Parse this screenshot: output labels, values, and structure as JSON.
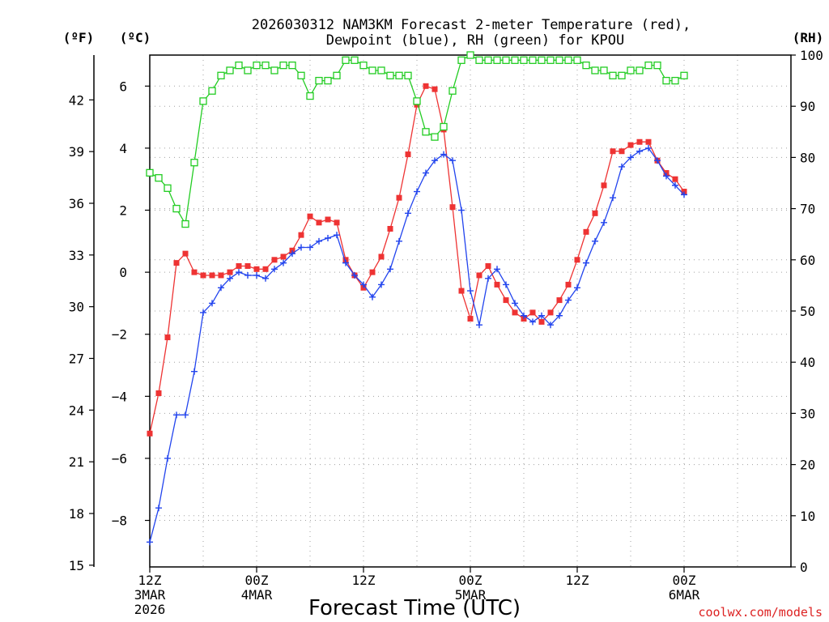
{
  "chart_data": {
    "type": "line",
    "title_line1": "2026030312 NAM3KM Forecast 2-meter Temperature (red),",
    "title_line2": "Dewpoint (blue), RH (green) for KPOU",
    "xlabel": "Forecast Time (UTC)",
    "credit": "coolwx.com/models",
    "left_unit_f": "(ºF)",
    "left_unit_c": "(ºC)",
    "right_unit": "(RH)",
    "x_range_hours": [
      0,
      72
    ],
    "x_ticks": [
      {
        "hour": 0,
        "line1": "12Z",
        "line2": "3MAR",
        "line3": "2026"
      },
      {
        "hour": 12,
        "line1": "00Z",
        "line2": "4MAR",
        "line3": ""
      },
      {
        "hour": 24,
        "line1": "12Z",
        "line2": "",
        "line3": ""
      },
      {
        "hour": 36,
        "line1": "00Z",
        "line2": "5MAR",
        "line3": ""
      },
      {
        "hour": 48,
        "line1": "12Z",
        "line2": "",
        "line3": ""
      },
      {
        "hour": 60,
        "line1": "00Z",
        "line2": "6MAR",
        "line3": ""
      }
    ],
    "celsius_range": [
      -9.5,
      7.0
    ],
    "celsius_ticks": [
      -8,
      -6,
      -4,
      -2,
      0,
      2,
      4,
      6
    ],
    "fahrenheit_ticks": [
      15,
      18,
      21,
      24,
      27,
      30,
      33,
      36,
      39,
      42
    ],
    "rh_range": [
      0,
      100
    ],
    "rh_ticks": [
      0,
      10,
      20,
      30,
      40,
      50,
      60,
      70,
      80,
      90,
      100
    ],
    "series": [
      {
        "name": "Temperature",
        "axis": "celsius",
        "color": "#ee3333",
        "marker": "filled-square",
        "x": [
          0,
          1,
          2,
          3,
          4,
          5,
          6,
          7,
          8,
          9,
          10,
          11,
          12,
          13,
          14,
          15,
          16,
          17,
          18,
          19,
          20,
          21,
          22,
          23,
          24,
          25,
          26,
          27,
          28,
          29,
          30,
          31,
          32,
          33,
          34,
          35,
          36,
          37,
          38,
          39,
          40,
          41,
          42,
          43,
          44,
          45,
          46,
          47,
          48,
          49,
          50,
          51,
          52,
          53,
          54,
          55,
          56,
          57,
          58,
          59,
          60
        ],
        "values": [
          -5.2,
          -3.9,
          -2.1,
          0.3,
          0.6,
          0.0,
          -0.1,
          -0.1,
          -0.1,
          0.0,
          0.2,
          0.2,
          0.1,
          0.1,
          0.4,
          0.5,
          0.7,
          1.2,
          1.8,
          1.6,
          1.7,
          1.6,
          0.4,
          -0.1,
          -0.5,
          0.0,
          0.5,
          1.4,
          2.4,
          3.8,
          5.4,
          6.0,
          5.9,
          4.6,
          2.1,
          -0.6,
          -1.5,
          -0.1,
          0.2,
          -0.4,
          -0.9,
          -1.3,
          -1.5,
          -1.3,
          -1.6,
          -1.3,
          -0.9,
          -0.4,
          0.4,
          1.3,
          1.9,
          2.8,
          3.9,
          3.9,
          4.1,
          4.2,
          4.2,
          3.6,
          3.2,
          3.0,
          2.6
        ]
      },
      {
        "name": "Dewpoint",
        "axis": "celsius",
        "color": "#2244ee",
        "marker": "plus",
        "x": [
          0,
          1,
          2,
          3,
          4,
          5,
          6,
          7,
          8,
          9,
          10,
          11,
          12,
          13,
          14,
          15,
          16,
          17,
          18,
          19,
          20,
          21,
          22,
          23,
          24,
          25,
          26,
          27,
          28,
          29,
          30,
          31,
          32,
          33,
          34,
          35,
          36,
          37,
          38,
          39,
          40,
          41,
          42,
          43,
          44,
          45,
          46,
          47,
          48,
          49,
          50,
          51,
          52,
          53,
          54,
          55,
          56,
          57,
          58,
          59,
          60
        ],
        "values": [
          -8.7,
          -7.6,
          -6.0,
          -4.6,
          -4.6,
          -3.2,
          -1.3,
          -1.0,
          -0.5,
          -0.2,
          0.0,
          -0.1,
          -0.1,
          -0.2,
          0.1,
          0.3,
          0.6,
          0.8,
          0.8,
          1.0,
          1.1,
          1.2,
          0.3,
          -0.1,
          -0.4,
          -0.8,
          -0.4,
          0.1,
          1.0,
          1.9,
          2.6,
          3.2,
          3.6,
          3.8,
          3.6,
          2.0,
          -0.6,
          -1.7,
          -0.2,
          0.1,
          -0.4,
          -1.0,
          -1.4,
          -1.6,
          -1.4,
          -1.7,
          -1.4,
          -0.9,
          -0.5,
          0.3,
          1.0,
          1.6,
          2.4,
          3.4,
          3.7,
          3.9,
          4.0,
          3.6,
          3.1,
          2.8,
          2.5
        ]
      },
      {
        "name": "Relative Humidity",
        "axis": "rh",
        "color": "#22cc22",
        "marker": "open-square",
        "x": [
          0,
          1,
          2,
          3,
          4,
          5,
          6,
          7,
          8,
          9,
          10,
          11,
          12,
          13,
          14,
          15,
          16,
          17,
          18,
          19,
          20,
          21,
          22,
          23,
          24,
          25,
          26,
          27,
          28,
          29,
          30,
          31,
          32,
          33,
          34,
          35,
          36,
          37,
          38,
          39,
          40,
          41,
          42,
          43,
          44,
          45,
          46,
          47,
          48,
          49,
          50,
          51,
          52,
          53,
          54,
          55,
          56,
          57,
          58,
          59,
          60
        ],
        "values": [
          77,
          76,
          74,
          70,
          67,
          79,
          91,
          93,
          96,
          97,
          98,
          97,
          98,
          98,
          97,
          98,
          98,
          96,
          92,
          95,
          95,
          96,
          99,
          99,
          98,
          97,
          97,
          96,
          96,
          96,
          91,
          85,
          84,
          86,
          93,
          99,
          100,
          99,
          99,
          99,
          99,
          99,
          99,
          99,
          99,
          99,
          99,
          99,
          99,
          98,
          97,
          97,
          96,
          96,
          97,
          97,
          98,
          98,
          95,
          95,
          96
        ]
      }
    ]
  }
}
